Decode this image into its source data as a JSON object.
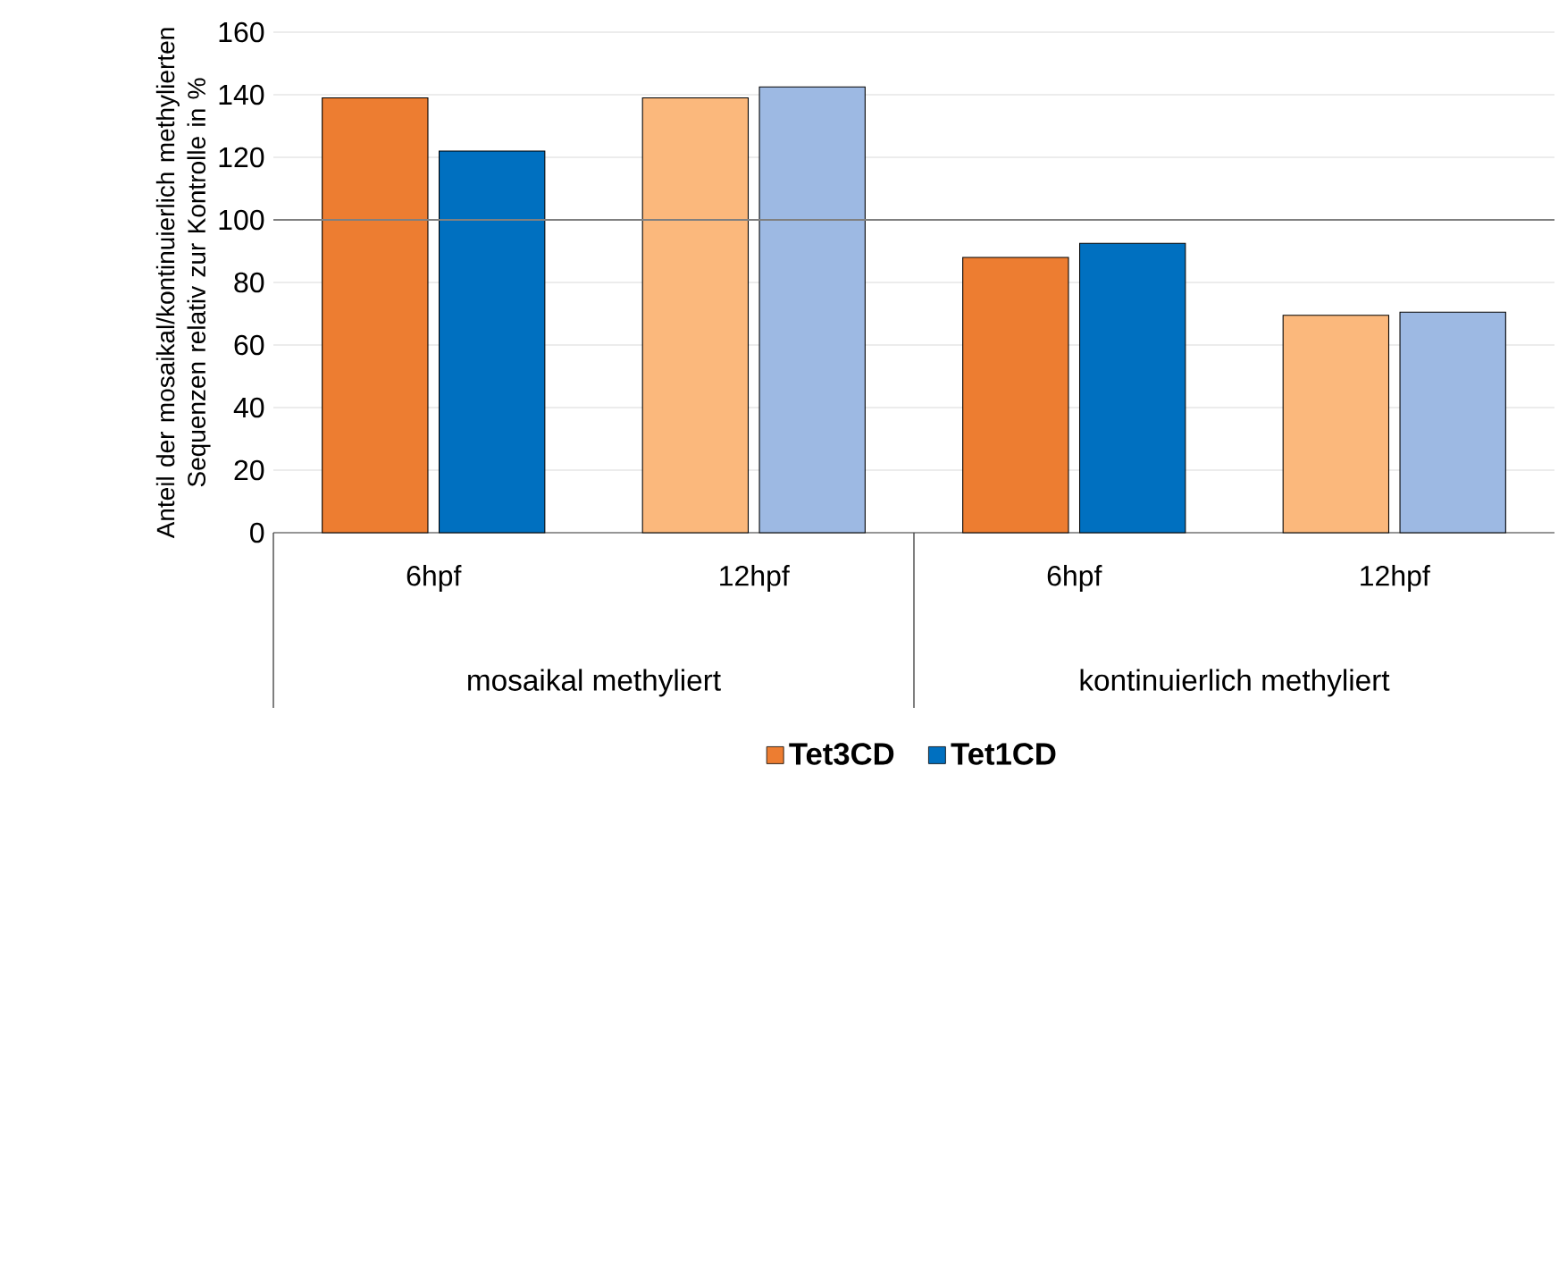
{
  "chart_data": {
    "type": "bar",
    "ylabel": "Anteil der mosaikal/kontinuierlich methylierten Sequenzen relativ zur Kontrolle in %",
    "categories": [
      "6hpf",
      "12hpf",
      "6hpf",
      "12hpf"
    ],
    "series": [
      {
        "name": "Tet3CD",
        "color": "#ed7d31",
        "colors": [
          "#ed7d31",
          "#fbb87c",
          "#ed7d31",
          "#fbb87c"
        ],
        "values": [
          139,
          139,
          88,
          69.5
        ]
      },
      {
        "name": "Tet1CD",
        "color": "#0070c0",
        "colors": [
          "#0070c0",
          "#9db9e3",
          "#0070c0",
          "#9db9e3"
        ],
        "values": [
          122,
          142.5,
          92.5,
          70.5
        ]
      }
    ],
    "annotations": [
      "mosaikal methyliert",
      "kontinuierlich methyliert"
    ],
    "ylim": [
      0,
      160
    ],
    "yticks": [
      0,
      20,
      40,
      60,
      80,
      100,
      120,
      140,
      160
    ],
    "ref_lines": [
      {
        "axis": "y",
        "value": 100,
        "color": "#808080"
      }
    ],
    "grid": "y",
    "legend": "bottom"
  }
}
